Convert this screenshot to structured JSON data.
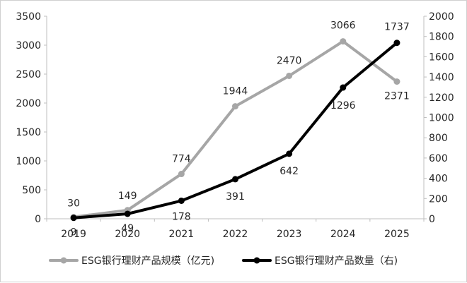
{
  "chart_data": {
    "type": "line",
    "categories": [
      "2019",
      "2020",
      "2021",
      "2022",
      "2023",
      "2024",
      "2025"
    ],
    "series": [
      {
        "name": "ESG银行理财产品规模（亿元)",
        "axis": "left",
        "color": "#a6a6a6",
        "values": [
          30,
          149,
          774,
          1944,
          2470,
          3066,
          2371
        ],
        "labels": [
          "30",
          "149",
          "774",
          "1944",
          "2470",
          "3066",
          "2371"
        ]
      },
      {
        "name": "ESG银行理财产品数量（右)",
        "axis": "right",
        "color": "#000000",
        "values": [
          9,
          49,
          178,
          391,
          642,
          1296,
          1737
        ],
        "labels": [
          "9",
          "49",
          "178",
          "391",
          "642",
          "1296",
          "1737"
        ]
      }
    ],
    "y_left": {
      "min": 0,
      "max": 3500,
      "ticks": [
        "0",
        "500",
        "1000",
        "1500",
        "2000",
        "2500",
        "3000",
        "3500"
      ]
    },
    "y_right": {
      "min": 0,
      "max": 2000,
      "ticks": [
        "0",
        "200",
        "400",
        "600",
        "800",
        "1000",
        "1200",
        "1400",
        "1600",
        "1800",
        "2000"
      ]
    },
    "legend_position": "bottom",
    "grid": false
  }
}
